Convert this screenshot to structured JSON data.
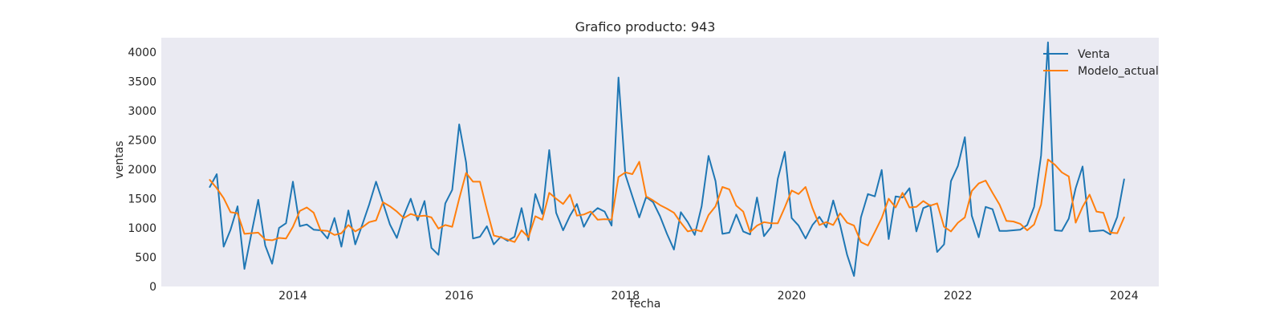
{
  "chart_data": {
    "type": "line",
    "title": "Grafico producto: 943",
    "xlabel": "fecha",
    "ylabel": "ventas",
    "x_start": "2013-01",
    "x_frequency": "monthly",
    "xlim": [
      "2012-06",
      "2024-06"
    ],
    "ylim": [
      0,
      4250
    ],
    "x_ticks": [
      "2014",
      "2016",
      "2018",
      "2020",
      "2022",
      "2024"
    ],
    "y_ticks": [
      0,
      500,
      1000,
      1500,
      2000,
      2500,
      3000,
      3500,
      4000
    ],
    "grid": false,
    "background": "#EAEAF2",
    "legend_position": "top-right",
    "series": [
      {
        "name": "Venta",
        "color": "#1F77B4",
        "values": [
          1700,
          1920,
          680,
          970,
          1370,
          300,
          900,
          1480,
          700,
          390,
          1000,
          1080,
          1790,
          1030,
          1060,
          970,
          960,
          820,
          1170,
          680,
          1300,
          720,
          1050,
          1400,
          1790,
          1430,
          1060,
          830,
          1210,
          1500,
          1130,
          1460,
          660,
          540,
          1420,
          1650,
          2770,
          2120,
          820,
          850,
          1030,
          720,
          850,
          780,
          850,
          1340,
          790,
          1580,
          1240,
          2330,
          1260,
          960,
          1210,
          1410,
          1020,
          1240,
          1340,
          1280,
          1040,
          3570,
          1910,
          1540,
          1180,
          1530,
          1440,
          1200,
          900,
          630,
          1270,
          1100,
          880,
          1370,
          2230,
          1800,
          900,
          920,
          1230,
          940,
          890,
          1520,
          860,
          1010,
          1840,
          2300,
          1170,
          1040,
          820,
          1050,
          1190,
          1010,
          1470,
          1050,
          540,
          180,
          1180,
          1580,
          1540,
          1990,
          810,
          1540,
          1520,
          1680,
          940,
          1340,
          1390,
          590,
          720,
          1800,
          2060,
          2550,
          1210,
          840,
          1360,
          1320,
          950,
          950,
          960,
          970,
          1050,
          1360,
          2240,
          4170,
          960,
          950,
          1160,
          1680,
          2050,
          940,
          950,
          960,
          890,
          1190,
          1830
        ]
      },
      {
        "name": "Modelo_actual",
        "color": "#FF7F0E",
        "values": [
          1820,
          1680,
          1510,
          1270,
          1250,
          900,
          910,
          920,
          800,
          790,
          830,
          820,
          1020,
          1290,
          1350,
          1260,
          960,
          950,
          880,
          910,
          1050,
          940,
          1010,
          1100,
          1130,
          1440,
          1370,
          1280,
          1170,
          1240,
          1200,
          1210,
          1180,
          990,
          1050,
          1020,
          1500,
          1940,
          1790,
          1790,
          1310,
          870,
          840,
          800,
          760,
          960,
          840,
          1200,
          1140,
          1600,
          1500,
          1410,
          1570,
          1210,
          1230,
          1280,
          1140,
          1150,
          1140,
          1870,
          1950,
          1920,
          2130,
          1540,
          1470,
          1390,
          1330,
          1260,
          1090,
          940,
          970,
          940,
          1220,
          1370,
          1700,
          1660,
          1380,
          1280,
          930,
          1040,
          1100,
          1080,
          1080,
          1350,
          1640,
          1580,
          1700,
          1340,
          1050,
          1100,
          1050,
          1250,
          1090,
          1040,
          760,
          700,
          930,
          1170,
          1500,
          1350,
          1600,
          1350,
          1360,
          1460,
          1380,
          1420,
          1020,
          940,
          1090,
          1180,
          1630,
          1760,
          1810,
          1600,
          1400,
          1120,
          1110,
          1070,
          960,
          1060,
          1400,
          2170,
          2080,
          1950,
          1880,
          1090,
          1360,
          1570,
          1280,
          1260,
          920,
          910,
          1180
        ]
      }
    ]
  }
}
